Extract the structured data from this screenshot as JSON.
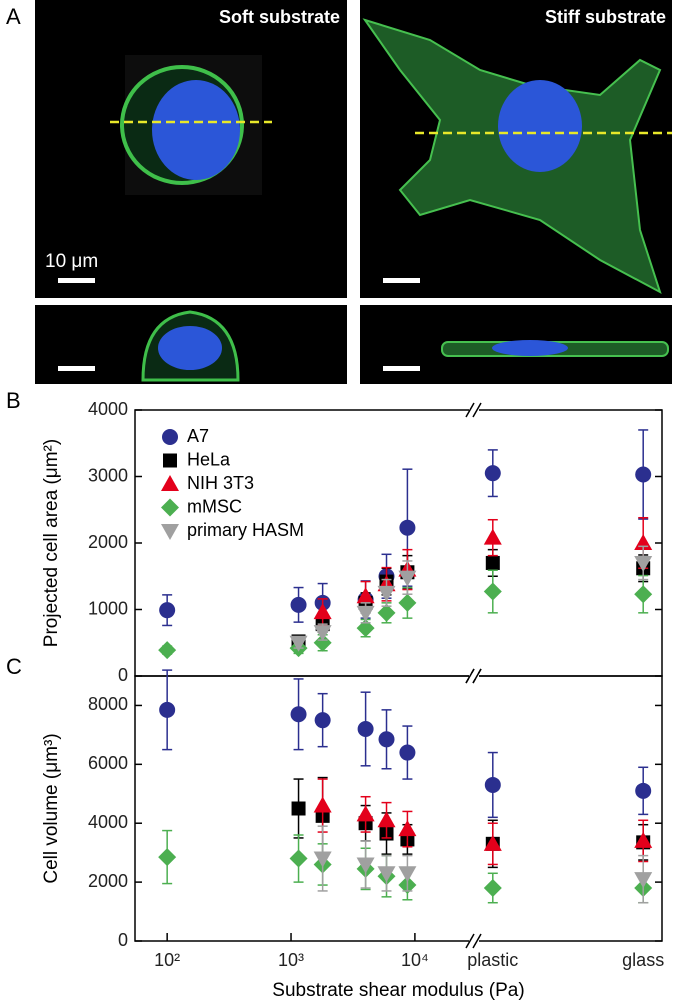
{
  "panel_a": {
    "label": "A",
    "soft": "Soft substrate",
    "stiff": "Stiff substrate",
    "scale_bar": "10 μm"
  },
  "chart_data": [
    {
      "type": "scatter",
      "panel_label": "B",
      "ylabel": "Projected cell area (μm²)",
      "xscale": "log",
      "axis_break": true,
      "legend": "upper left",
      "x": [
        100,
        1150,
        1800,
        4000,
        5900,
        8700,
        "plastic",
        "glass"
      ],
      "xlim": [
        55,
        30000
      ],
      "ylim": [
        0,
        4000
      ],
      "yticks": [
        0,
        1000,
        2000,
        3000,
        4000
      ],
      "series": [
        {
          "name": "A7",
          "color": "#2b2f8f",
          "marker": "circle",
          "values": [
            990,
            1070,
            1100,
            1150,
            1500,
            2230,
            3050,
            3030
          ],
          "errors": [
            230,
            260,
            290,
            280,
            330,
            880,
            350,
            670
          ]
        },
        {
          "name": "HeLa",
          "color": "#000000",
          "marker": "square",
          "values": [
            null,
            520,
            780,
            1100,
            1420,
            1560,
            1700,
            1620
          ],
          "errors": [
            null,
            80,
            120,
            150,
            200,
            250,
            200,
            200
          ]
        },
        {
          "name": "NIH 3T3",
          "color": "#e3001b",
          "marker": "triangle",
          "values": [
            null,
            null,
            960,
            1200,
            1380,
            1600,
            2080,
            2000
          ],
          "errors": [
            null,
            null,
            200,
            220,
            250,
            300,
            270,
            380
          ]
        },
        {
          "name": "mMSC",
          "color": "#4caf50",
          "marker": "diamond",
          "values": [
            390,
            420,
            500,
            720,
            950,
            1100,
            1270,
            1230
          ],
          "errors": [
            60,
            80,
            120,
            130,
            150,
            230,
            320,
            280
          ]
        },
        {
          "name": "primary HASM",
          "color": "#a0a0a0",
          "marker": "triangle-down",
          "values": [
            null,
            500,
            660,
            950,
            1250,
            1480,
            null,
            1700
          ],
          "errors": [
            null,
            80,
            120,
            150,
            200,
            250,
            null,
            250
          ]
        }
      ]
    },
    {
      "type": "scatter",
      "panel_label": "C",
      "ylabel": "Cell volume (μm³)",
      "xlabel": "Substrate shear modulus (Pa)",
      "xscale": "log",
      "axis_break": true,
      "x": [
        100,
        1150,
        1800,
        4000,
        5900,
        8700,
        "plastic",
        "glass"
      ],
      "xlim": [
        55,
        30000
      ],
      "ylim": [
        0,
        9000
      ],
      "yticks": [
        0,
        2000,
        4000,
        6000,
        8000
      ],
      "xticks": [
        {
          "value": 100,
          "label": "10²"
        },
        {
          "value": 1000,
          "label": "10³"
        },
        {
          "value": 10000,
          "label": "10⁴"
        }
      ],
      "series": [
        {
          "name": "A7",
          "color": "#2b2f8f",
          "marker": "circle",
          "values": [
            7850,
            7700,
            7500,
            7200,
            6850,
            6400,
            5300,
            5100
          ],
          "errors": [
            1350,
            1200,
            900,
            1250,
            1000,
            900,
            1100,
            800
          ]
        },
        {
          "name": "HeLa",
          "color": "#000000",
          "marker": "square",
          "values": [
            null,
            4500,
            4250,
            4000,
            3650,
            3450,
            3300,
            3350
          ],
          "errors": [
            null,
            1000,
            1300,
            600,
            700,
            500,
            800,
            600
          ]
        },
        {
          "name": "NIH 3T3",
          "color": "#e3001b",
          "marker": "triangle",
          "values": [
            null,
            null,
            4600,
            4300,
            4100,
            3800,
            3300,
            3400
          ],
          "errors": [
            null,
            null,
            900,
            600,
            600,
            600,
            700,
            700
          ]
        },
        {
          "name": "mMSC",
          "color": "#4caf50",
          "marker": "diamond",
          "values": [
            2850,
            2800,
            2600,
            2450,
            2200,
            1900,
            1800,
            1800
          ],
          "errors": [
            900,
            800,
            700,
            700,
            700,
            500,
            500,
            500
          ]
        },
        {
          "name": "primary HASM",
          "color": "#a0a0a0",
          "marker": "triangle-down",
          "values": [
            null,
            null,
            2800,
            2600,
            2300,
            2300,
            null,
            2100
          ],
          "errors": [
            null,
            null,
            1100,
            800,
            600,
            600,
            null,
            800
          ]
        }
      ]
    }
  ]
}
